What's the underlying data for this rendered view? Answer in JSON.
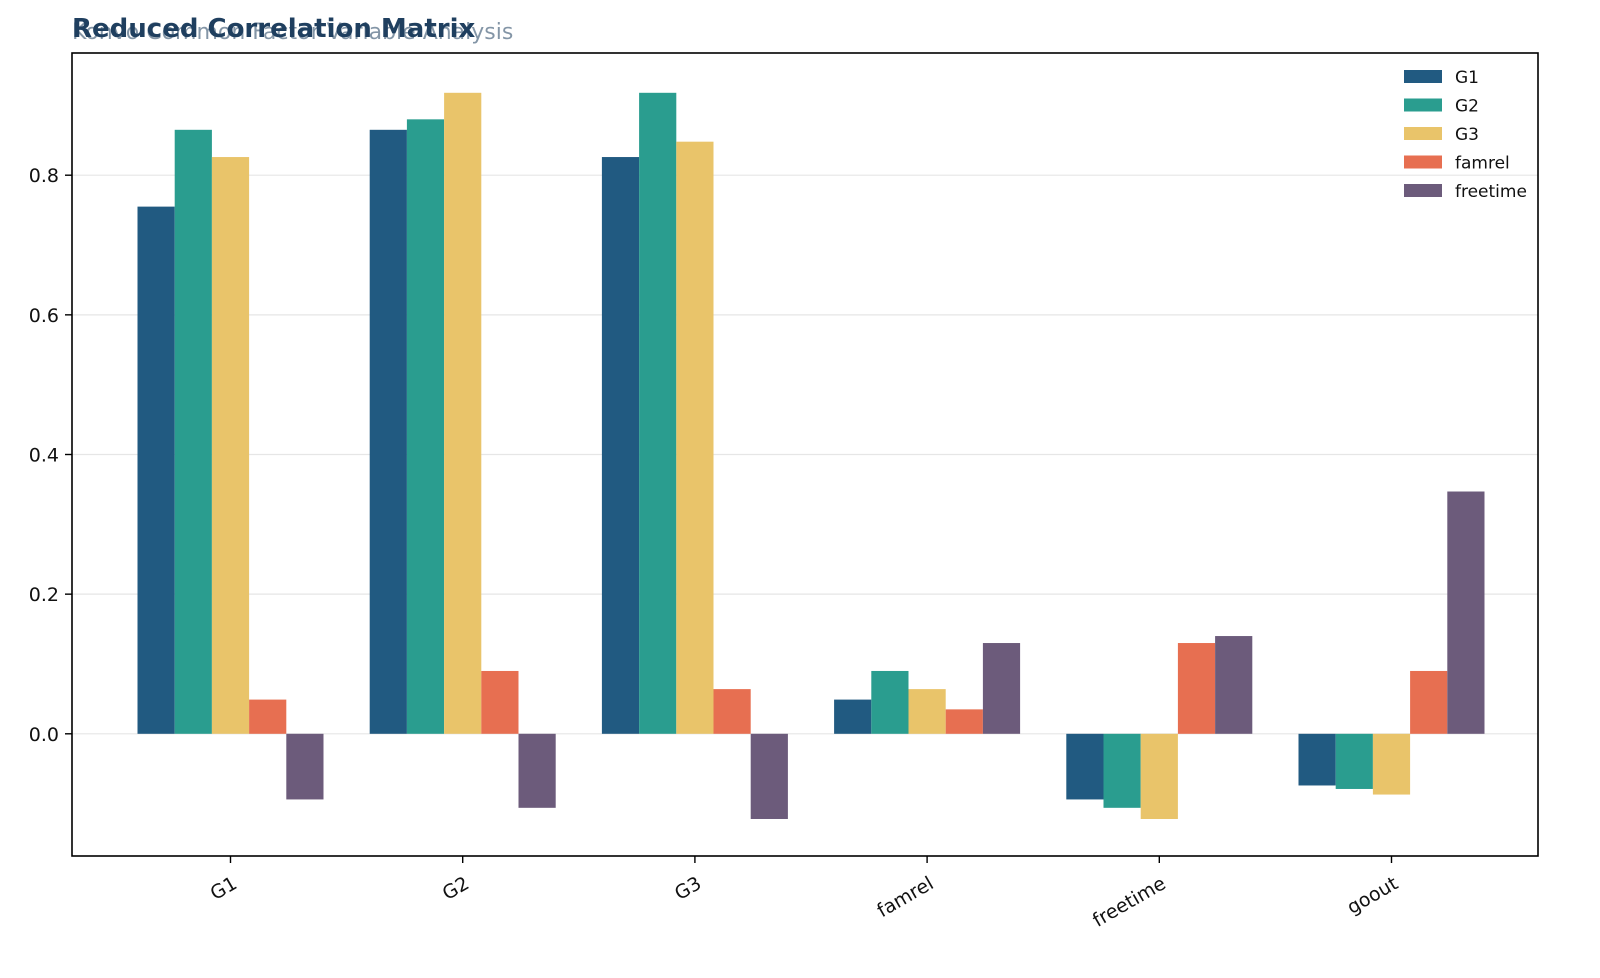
{
  "chart_data": {
    "type": "bar",
    "title": "Reduced Correlation Matrix",
    "subtitle": "Konvo Common Factor Variable Analysis",
    "xlabel": "",
    "ylabel": "",
    "categories": [
      "G1",
      "G2",
      "G3",
      "famrel",
      "freetime",
      "goout"
    ],
    "ylim": [
      -0.175,
      0.975
    ],
    "yticks": [
      0.0,
      0.2,
      0.4,
      0.6,
      0.8
    ],
    "ytick_labels": [
      "0.0",
      "0.2",
      "0.4",
      "0.6",
      "0.8"
    ],
    "grid": "horizontal",
    "legend_position": "top-right",
    "series": [
      {
        "name": "G1",
        "color": "#215a81",
        "values": [
          0.755,
          0.865,
          0.826,
          0.049,
          -0.094,
          -0.074
        ]
      },
      {
        "name": "G2",
        "color": "#2a9d8f",
        "values": [
          0.865,
          0.88,
          0.918,
          0.09,
          -0.106,
          -0.079
        ]
      },
      {
        "name": "G3",
        "color": "#e9c46a",
        "values": [
          0.826,
          0.918,
          0.848,
          0.064,
          -0.122,
          -0.087
        ]
      },
      {
        "name": "famrel",
        "color": "#e76f51",
        "values": [
          0.049,
          0.09,
          0.064,
          0.035,
          0.13,
          0.09
        ]
      },
      {
        "name": "freetime",
        "color": "#6c5b7b",
        "values": [
          -0.094,
          -0.106,
          -0.122,
          0.13,
          0.14,
          0.347
        ]
      }
    ]
  }
}
